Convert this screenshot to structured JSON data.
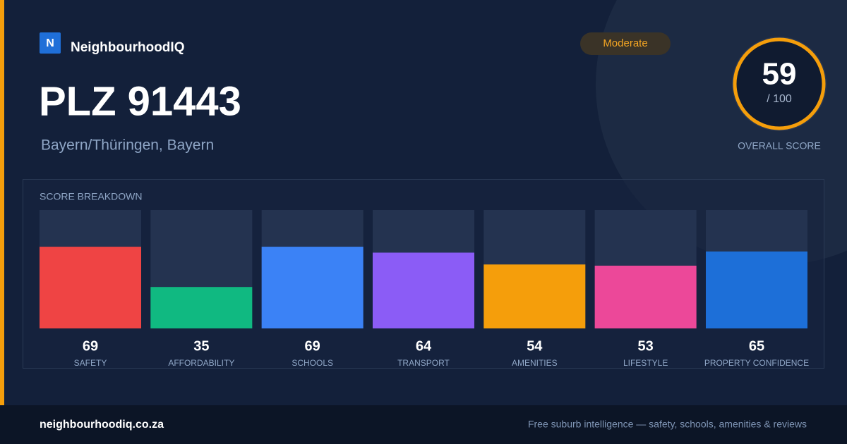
{
  "brand": {
    "logo": "N",
    "name": "NeighbourhoodIQ"
  },
  "title": "PLZ 91443",
  "subtitle": "Bayern/Thüringen, Bayern",
  "badge": "Moderate",
  "score": {
    "value": "59",
    "max_label": "/ 100",
    "label": "OVERALL SCORE"
  },
  "chart_data": {
    "type": "bar",
    "title": "SCORE BREAKDOWN",
    "categories": [
      "SAFETY",
      "AFFORDABILITY",
      "SCHOOLS",
      "TRANSPORT",
      "AMENITIES",
      "LIFESTYLE",
      "PROPERTY CONFIDENCE"
    ],
    "values": [
      69,
      35,
      69,
      64,
      54,
      53,
      65
    ],
    "colors": [
      "#ef4444",
      "#10b981",
      "#3b82f6",
      "#8b5cf6",
      "#f59e0b",
      "#ec4899",
      "#1d6fd8"
    ],
    "ylim": [
      0,
      100
    ]
  },
  "footer": {
    "site": "neighbourhoodiq.co.za",
    "tagline": "Free suburb intelligence — safety, schools, amenities & reviews"
  }
}
